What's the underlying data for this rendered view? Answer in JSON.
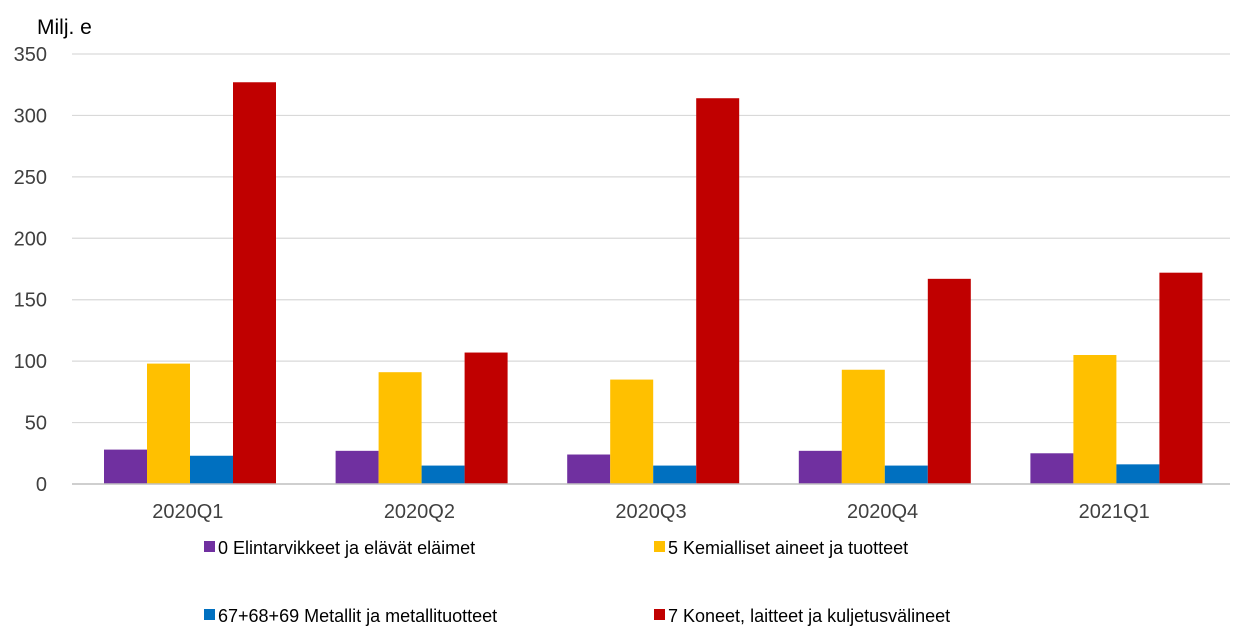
{
  "chart_data": {
    "type": "bar",
    "ylabel": "Milj. e",
    "ylim": [
      0,
      350
    ],
    "yticks": [
      0,
      50,
      100,
      150,
      200,
      250,
      300,
      350
    ],
    "grid": true,
    "legend_position": "bottom",
    "categories": [
      "2020Q1",
      "2020Q2",
      "2020Q3",
      "2020Q4",
      "2021Q1"
    ],
    "series": [
      {
        "name": "0 Elintarvikkeet ja elävät eläimet",
        "color": "#7030a0",
        "values": [
          28,
          27,
          24,
          27,
          25
        ]
      },
      {
        "name": "5 Kemialliset aineet ja tuotteet",
        "color": "#ffc000",
        "values": [
          98,
          91,
          85,
          93,
          105
        ]
      },
      {
        "name": "67+68+69 Metallit ja metallituotteet",
        "color": "#0070c0",
        "values": [
          23,
          15,
          15,
          15,
          16
        ]
      },
      {
        "name": "7 Koneet, laitteet ja kuljetusvälineet",
        "color": "#c00000",
        "values": [
          327,
          107,
          314,
          167,
          172
        ]
      }
    ]
  }
}
